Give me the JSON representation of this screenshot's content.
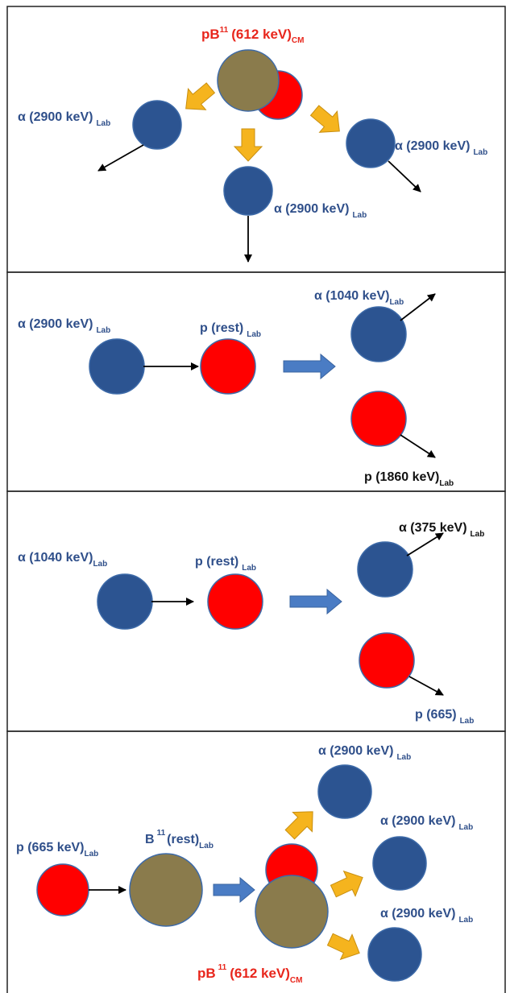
{
  "panels": [
    {
      "labels": [
        {
          "text": "pB",
          "sup": "11",
          "text2": "(612 keV)",
          "sub": "CM"
        },
        {
          "text": "α (2900 keV)",
          "sub": "Lab"
        },
        {
          "text": "α (2900 keV)",
          "sub": "Lab"
        },
        {
          "text": "α (2900 keV)",
          "sub": "Lab"
        }
      ]
    },
    {
      "labels": [
        {
          "text": "α (2900 keV)",
          "sub": "Lab"
        },
        {
          "text": "p (rest)",
          "sub": "Lab"
        },
        {
          "text": "α (1040 keV)",
          "sub": "Lab"
        },
        {
          "text": "p (1860 keV)",
          "sub": "Lab"
        }
      ]
    },
    {
      "labels": [
        {
          "text": "α (1040 keV)",
          "sub": "Lab"
        },
        {
          "text": "p (rest)",
          "sub": "Lab"
        },
        {
          "text": "α (375 keV)",
          "sub": "Lab"
        },
        {
          "text": "p (665)",
          "sub": "Lab"
        }
      ]
    },
    {
      "labels": [
        {
          "text": "p (665 keV)",
          "sub": "Lab"
        },
        {
          "text": "B",
          "sup": "11",
          "text2": "(rest)",
          "sub": "Lab"
        },
        {
          "text": "pB",
          "sup": "11",
          "text2": "(612 keV)",
          "sub": "CM"
        },
        {
          "text": "α (2900 keV)",
          "sub": "Lab"
        },
        {
          "text": "α (2900 keV)",
          "sub": "Lab"
        },
        {
          "text": "α (2900 keV)",
          "sub": "Lab"
        }
      ]
    }
  ]
}
